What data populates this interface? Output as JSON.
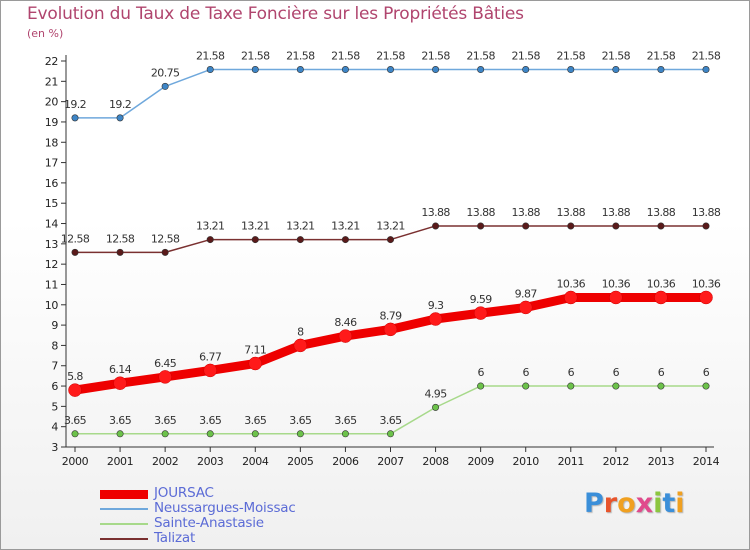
{
  "header": {
    "title": "Evolution du Taux de Taxe Foncière sur les Propriétés Bâties",
    "subtitle": "(en %)"
  },
  "colors": {
    "title": "#b0456e",
    "axis": "#333333",
    "legend_text": "#5b6bd6"
  },
  "chart_data": {
    "type": "line",
    "title": "Evolution du Taux de Taxe Foncière sur les Propriétés Bâties",
    "ylabel": "(en %)",
    "xlabel": "",
    "x": [
      "2000",
      "2001",
      "2002",
      "2003",
      "2004",
      "2005",
      "2006",
      "2007",
      "2008",
      "2009",
      "2010",
      "2011",
      "2012",
      "2013",
      "2014"
    ],
    "ylim": [
      3,
      22
    ],
    "yticks": [
      3,
      4,
      5,
      6,
      7,
      8,
      9,
      10,
      11,
      12,
      13,
      14,
      15,
      16,
      17,
      18,
      19,
      20,
      21,
      22
    ],
    "grid": false,
    "legend_position": "bottom-left",
    "series": [
      {
        "name": "JOURSAC",
        "color": "#ee0000",
        "marker_color": "#ff1a1a",
        "width": 9,
        "values": [
          5.8,
          6.14,
          6.45,
          6.77,
          7.11,
          8,
          8.46,
          8.79,
          9.3,
          9.59,
          9.87,
          10.36,
          10.36,
          10.36,
          10.36
        ],
        "labels": [
          "5.8",
          "6.14",
          "6.45",
          "6.77",
          "7.11",
          "8",
          "8.46",
          "8.79",
          "9.3",
          "9.59",
          "9.87",
          "10.36",
          "10.36",
          "10.36",
          "10.36"
        ]
      },
      {
        "name": "Neussargues-Moissac",
        "color": "#6fa8dc",
        "marker_color": "#3d85c6",
        "width": 1.5,
        "values": [
          19.2,
          19.2,
          20.75,
          21.58,
          21.58,
          21.58,
          21.58,
          21.58,
          21.58,
          21.58,
          21.58,
          21.58,
          21.58,
          21.58,
          21.58
        ],
        "labels": [
          "19.2",
          "19.2",
          "20.75",
          "21.58",
          "21.58",
          "21.58",
          "21.58",
          "21.58",
          "21.58",
          "21.58",
          "21.58",
          "21.58",
          "21.58",
          "21.58",
          "21.58"
        ]
      },
      {
        "name": "Sainte-Anastasie",
        "color": "#a7d98a",
        "marker_color": "#6cc24a",
        "width": 1.5,
        "values": [
          3.65,
          3.65,
          3.65,
          3.65,
          3.65,
          3.65,
          3.65,
          3.65,
          4.95,
          6,
          6,
          6,
          6,
          6,
          6
        ],
        "labels": [
          "3.65",
          "3.65",
          "3.65",
          "3.65",
          "3.65",
          "3.65",
          "3.65",
          "3.65",
          "4.95",
          "6",
          "6",
          "6",
          "6",
          "6",
          "6"
        ]
      },
      {
        "name": "Talizat",
        "color": "#7a3030",
        "marker_color": "#5a1a1a",
        "width": 1.5,
        "values": [
          12.58,
          12.58,
          12.58,
          13.21,
          13.21,
          13.21,
          13.21,
          13.21,
          13.88,
          13.88,
          13.88,
          13.88,
          13.88,
          13.88,
          13.88
        ],
        "labels": [
          "12.58",
          "12.58",
          "12.58",
          "13.21",
          "13.21",
          "13.21",
          "13.21",
          "13.21",
          "13.88",
          "13.88",
          "13.88",
          "13.88",
          "13.88",
          "13.88",
          "13.88"
        ]
      }
    ]
  },
  "logo": {
    "letters": [
      {
        "ch": "P",
        "color": "#3b8fd9"
      },
      {
        "ch": "r",
        "color": "#e8542b"
      },
      {
        "ch": "o",
        "color": "#f0a020"
      },
      {
        "ch": "x",
        "color": "#e04a8c"
      },
      {
        "ch": "i",
        "color": "#8cc63f"
      },
      {
        "ch": "t",
        "color": "#3b8fd9"
      },
      {
        "ch": "i",
        "color": "#f0a020"
      }
    ]
  }
}
